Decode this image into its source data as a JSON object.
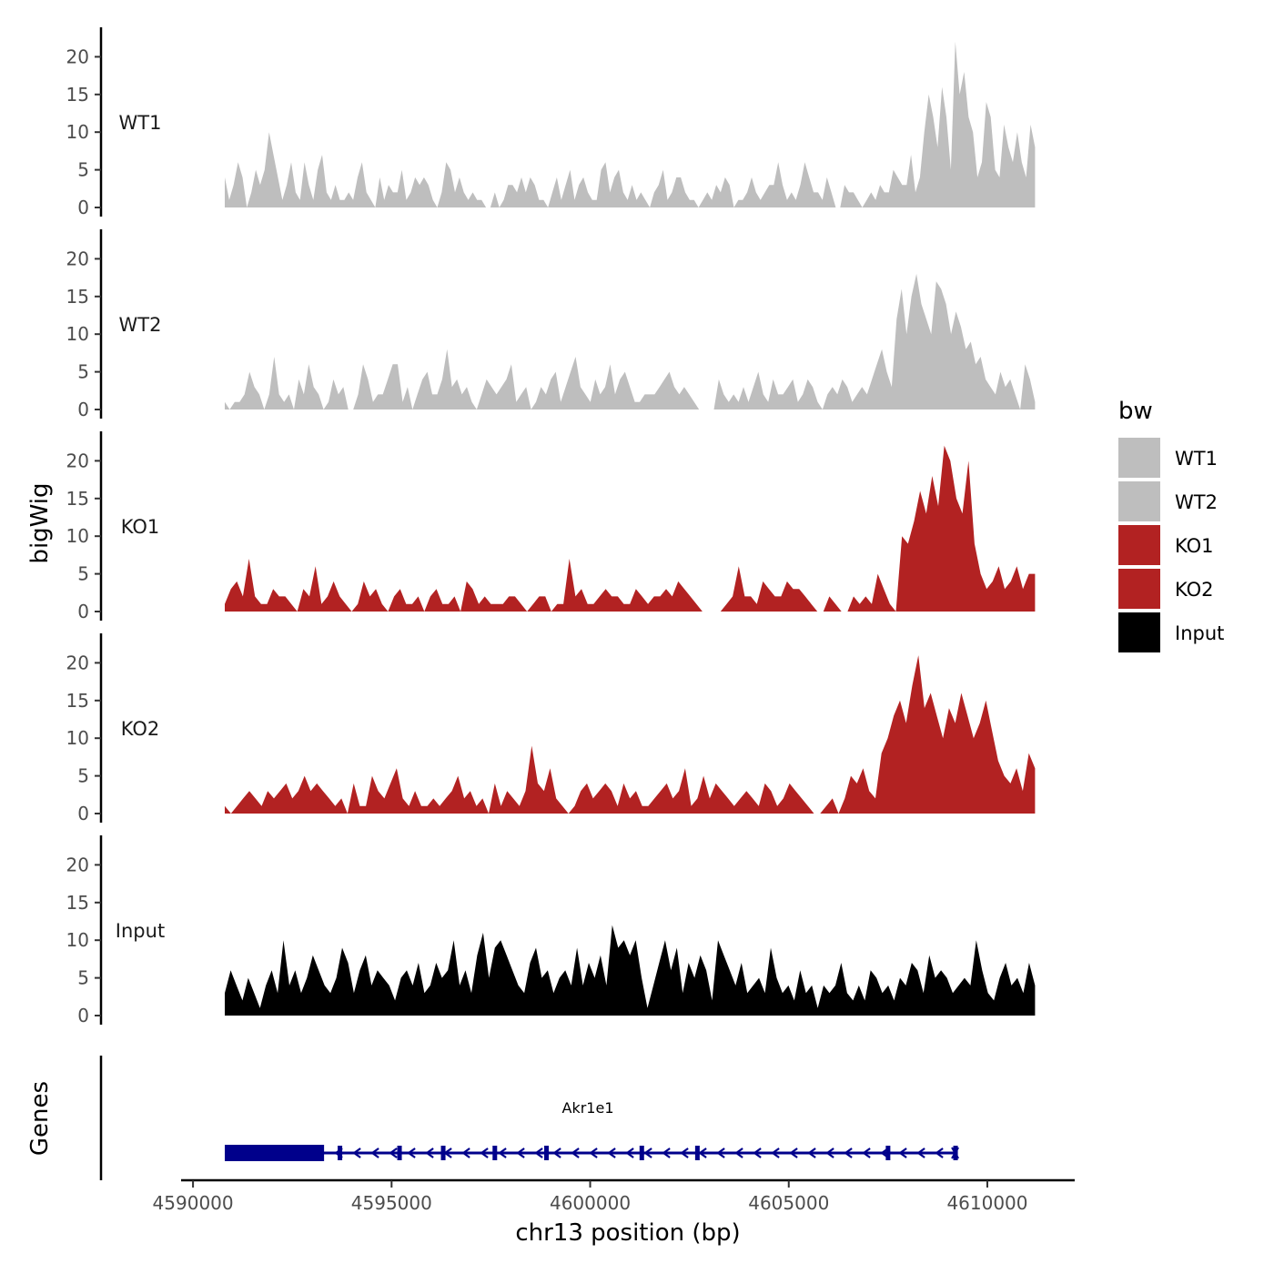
{
  "chart_data": {
    "type": "area",
    "ylabel": "bigWig",
    "xlabel": "chr13 position (bp)",
    "genes_label": "Genes",
    "xlim": [
      4589700,
      4612200
    ],
    "ylim": [
      0,
      24
    ],
    "y_ticks": [
      0,
      5,
      10,
      15,
      20
    ],
    "x_ticks": [
      {
        "value": 4590000,
        "label": "4590000"
      },
      {
        "value": 4595000,
        "label": "4595000"
      },
      {
        "value": 4600000,
        "label": "4600000"
      },
      {
        "value": 4605000,
        "label": "4605000"
      },
      {
        "value": 4610000,
        "label": "4610000"
      }
    ],
    "legend": {
      "title": "bw",
      "entries": [
        {
          "label": "WT1",
          "color": "#bebebe"
        },
        {
          "label": "WT2",
          "color": "#bebebe"
        },
        {
          "label": "KO1",
          "color": "#b22222"
        },
        {
          "label": "KO2",
          "color": "#b22222"
        },
        {
          "label": "Input",
          "color": "#000000"
        }
      ]
    },
    "series": [
      {
        "name": "WT1",
        "color": "#bebebe",
        "start": 4590800,
        "end": 4611200,
        "values": [
          4,
          1,
          3,
          6,
          4,
          0,
          2,
          5,
          3,
          5,
          10,
          7,
          4,
          1,
          3,
          6,
          2,
          1,
          6,
          3,
          1,
          5,
          7,
          2,
          1,
          3,
          1,
          1,
          2,
          1,
          4,
          6,
          2,
          1,
          0,
          4,
          1,
          3,
          2,
          2,
          5,
          1,
          2,
          4,
          3,
          4,
          3,
          1,
          0,
          2,
          6,
          5,
          2,
          4,
          2,
          1,
          2,
          1,
          1,
          0,
          0,
          2,
          0,
          1,
          3,
          3,
          2,
          4,
          2,
          4,
          3,
          1,
          1,
          0,
          2,
          4,
          1,
          3,
          5,
          1,
          3,
          4,
          2,
          1,
          1,
          5,
          6,
          2,
          4,
          5,
          2,
          1,
          3,
          1,
          2,
          1,
          0,
          2,
          3,
          5,
          1,
          2,
          4,
          4,
          2,
          1,
          1,
          0,
          1,
          2,
          1,
          3,
          2,
          4,
          3,
          0,
          1,
          1,
          2,
          4,
          2,
          1,
          2,
          3,
          3,
          6,
          3,
          1,
          2,
          1,
          3,
          6,
          4,
          2,
          2,
          1,
          4,
          2,
          0,
          0,
          3,
          2,
          2,
          1,
          0,
          1,
          2,
          1,
          3,
          2,
          2,
          5,
          4,
          3,
          3,
          7,
          2,
          4,
          10,
          15,
          12,
          8,
          16,
          12,
          5,
          22,
          15,
          18,
          12,
          10,
          4,
          6,
          14,
          12,
          5,
          4,
          11,
          8,
          6,
          10,
          6,
          4,
          11,
          8
        ]
      },
      {
        "name": "WT2",
        "color": "#bebebe",
        "start": 4590800,
        "end": 4611200,
        "values": [
          1,
          0,
          1,
          1,
          2,
          5,
          3,
          2,
          0,
          2,
          7,
          2,
          1,
          2,
          0,
          4,
          2,
          6,
          3,
          2,
          0,
          1,
          4,
          2,
          3,
          0,
          0,
          2,
          6,
          4,
          1,
          2,
          2,
          4,
          6,
          6,
          1,
          3,
          0,
          2,
          4,
          5,
          2,
          2,
          4,
          8,
          3,
          4,
          2,
          3,
          1,
          0,
          2,
          4,
          3,
          2,
          3,
          4,
          6,
          1,
          2,
          3,
          0,
          1,
          3,
          2,
          4,
          5,
          1,
          3,
          5,
          7,
          3,
          2,
          1,
          4,
          2,
          3,
          6,
          2,
          4,
          5,
          3,
          1,
          1,
          2,
          2,
          2,
          3,
          4,
          5,
          3,
          2,
          3,
          2,
          1,
          0,
          0,
          0,
          0,
          4,
          2,
          1,
          2,
          1,
          3,
          1,
          3,
          5,
          2,
          1,
          4,
          2,
          2,
          3,
          4,
          1,
          2,
          4,
          3,
          1,
          0,
          2,
          3,
          2,
          4,
          3,
          1,
          2,
          3,
          2,
          4,
          6,
          8,
          5,
          3,
          12,
          16,
          10,
          15,
          18,
          14,
          12,
          10,
          17,
          16,
          14,
          10,
          13,
          11,
          8,
          9,
          6,
          7,
          4,
          3,
          2,
          5,
          3,
          4,
          2,
          0,
          6,
          4,
          1
        ]
      },
      {
        "name": "KO1",
        "color": "#b22222",
        "start": 4590800,
        "end": 4611200,
        "values": [
          1,
          3,
          4,
          2,
          7,
          2,
          1,
          1,
          3,
          2,
          2,
          1,
          0,
          3,
          2,
          6,
          1,
          2,
          4,
          2,
          1,
          0,
          1,
          4,
          2,
          3,
          1,
          0,
          2,
          3,
          1,
          1,
          2,
          0,
          2,
          3,
          1,
          1,
          2,
          0,
          4,
          3,
          1,
          2,
          1,
          1,
          1,
          2,
          2,
          1,
          0,
          1,
          2,
          2,
          0,
          1,
          1,
          7,
          2,
          3,
          1,
          1,
          2,
          3,
          2,
          2,
          1,
          1,
          3,
          2,
          1,
          2,
          2,
          3,
          2,
          4,
          3,
          2,
          1,
          0,
          0,
          0,
          0,
          1,
          2,
          6,
          2,
          2,
          1,
          4,
          3,
          2,
          2,
          4,
          3,
          3,
          2,
          1,
          0,
          0,
          2,
          1,
          0,
          0,
          2,
          1,
          2,
          1,
          5,
          3,
          1,
          0,
          10,
          9,
          12,
          16,
          13,
          18,
          14,
          22,
          20,
          15,
          13,
          20,
          9,
          5,
          3,
          4,
          6,
          3,
          4,
          6,
          3,
          5,
          5
        ]
      },
      {
        "name": "KO2",
        "color": "#b22222",
        "start": 4590800,
        "end": 4611200,
        "values": [
          1,
          0,
          1,
          2,
          3,
          2,
          1,
          3,
          2,
          3,
          4,
          2,
          3,
          5,
          3,
          4,
          3,
          2,
          1,
          2,
          0,
          4,
          1,
          1,
          5,
          3,
          2,
          4,
          6,
          2,
          1,
          3,
          1,
          1,
          2,
          1,
          2,
          3,
          5,
          2,
          3,
          1,
          2,
          0,
          4,
          1,
          3,
          2,
          1,
          3,
          9,
          4,
          3,
          6,
          2,
          1,
          0,
          1,
          3,
          4,
          2,
          3,
          4,
          3,
          1,
          4,
          2,
          3,
          1,
          1,
          2,
          3,
          4,
          2,
          3,
          6,
          1,
          2,
          5,
          2,
          4,
          3,
          2,
          1,
          2,
          3,
          2,
          1,
          4,
          3,
          1,
          2,
          4,
          3,
          2,
          1,
          0,
          0,
          1,
          2,
          0,
          2,
          5,
          4,
          6,
          3,
          2,
          8,
          10,
          13,
          15,
          12,
          17,
          21,
          14,
          16,
          13,
          10,
          14,
          12,
          16,
          13,
          10,
          12,
          15,
          11,
          7,
          5,
          4,
          6,
          3,
          8,
          6
        ]
      },
      {
        "name": "Input",
        "color": "#000000",
        "start": 4590800,
        "end": 4611200,
        "values": [
          3,
          6,
          4,
          2,
          5,
          3,
          1,
          4,
          6,
          3,
          10,
          4,
          6,
          3,
          5,
          8,
          6,
          4,
          3,
          5,
          9,
          7,
          3,
          6,
          8,
          4,
          6,
          5,
          4,
          2,
          5,
          6,
          4,
          7,
          3,
          4,
          7,
          5,
          6,
          10,
          4,
          6,
          3,
          8,
          11,
          5,
          9,
          10,
          8,
          6,
          4,
          3,
          7,
          9,
          5,
          6,
          3,
          5,
          6,
          4,
          9,
          4,
          7,
          5,
          8,
          4,
          12,
          9,
          10,
          8,
          10,
          5,
          1,
          4,
          7,
          10,
          6,
          9,
          3,
          7,
          5,
          8,
          6,
          2,
          10,
          8,
          6,
          4,
          7,
          3,
          4,
          5,
          3,
          9,
          5,
          3,
          4,
          2,
          6,
          3,
          4,
          1,
          4,
          3,
          4,
          7,
          3,
          2,
          4,
          2,
          6,
          5,
          3,
          4,
          2,
          5,
          4,
          7,
          6,
          3,
          8,
          5,
          6,
          5,
          3,
          4,
          5,
          4,
          10,
          6,
          3,
          2,
          5,
          7,
          4,
          5,
          3,
          7,
          4
        ]
      }
    ],
    "gene": {
      "name": "Akr1e1",
      "color": "#00008b",
      "start": 4590800,
      "end": 4609200,
      "strand": "-",
      "thick_end": 4593300,
      "exons": [
        4593700,
        4595200,
        4596300,
        4597600,
        4598900,
        4601300,
        4602700,
        4607500,
        4609200
      ]
    }
  }
}
